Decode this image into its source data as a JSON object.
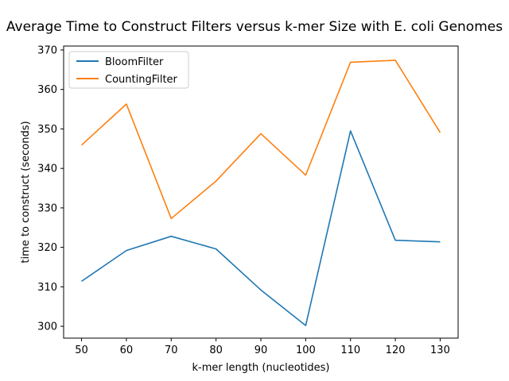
{
  "chart_data": {
    "type": "line",
    "title": "Average Time to Construct Filters versus k-mer Size with E. coli Genomes",
    "xlabel": "k-mer length (nucleotides)",
    "ylabel": "time to construct (seconds)",
    "x": [
      50,
      60,
      70,
      80,
      90,
      100,
      110,
      120,
      130
    ],
    "xlim": [
      46.0,
      134.0
    ],
    "ylim": [
      297.0,
      371.0
    ],
    "xticks": [
      50,
      60,
      70,
      80,
      90,
      100,
      110,
      120,
      130
    ],
    "yticks": [
      300,
      310,
      320,
      330,
      340,
      350,
      360,
      370
    ],
    "grid": false,
    "legend_position": "top-left",
    "series": [
      {
        "name": "BloomFilter",
        "color": "#1f77b4",
        "values": [
          311.4,
          319.2,
          322.8,
          319.6,
          309.2,
          300.2,
          349.5,
          321.8,
          321.4
        ]
      },
      {
        "name": "CountingFilter",
        "color": "#ff7f0e",
        "values": [
          345.9,
          356.3,
          327.3,
          336.8,
          348.8,
          338.3,
          366.9,
          367.4,
          349.1
        ]
      }
    ]
  }
}
